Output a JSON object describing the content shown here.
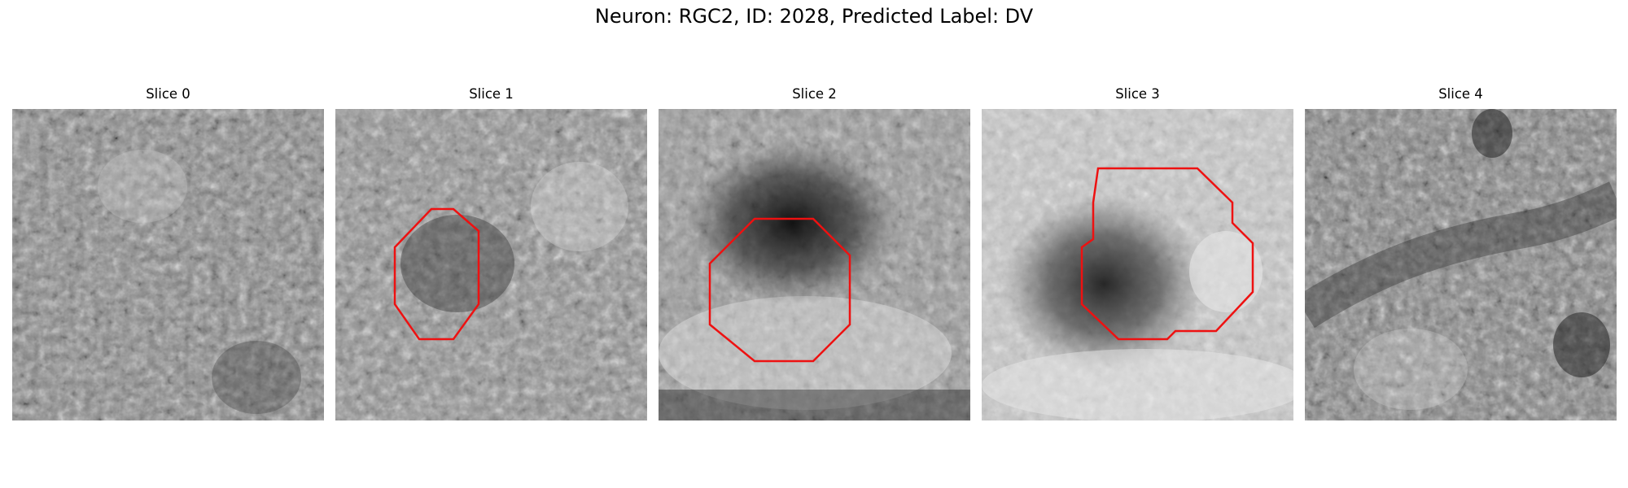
{
  "figure": {
    "title": "Neuron: RGC2, ID: 2028, Predicted Label: DV"
  },
  "colors": {
    "roi_outline": "#ee1111",
    "background": "#ffffff"
  },
  "panels": [
    {
      "title": "Slice 0",
      "has_roi": false
    },
    {
      "title": "Slice 1",
      "has_roi": true
    },
    {
      "title": "Slice 2",
      "has_roi": true
    },
    {
      "title": "Slice 3",
      "has_roi": true
    },
    {
      "title": "Slice 4",
      "has_roi": false
    }
  ]
}
